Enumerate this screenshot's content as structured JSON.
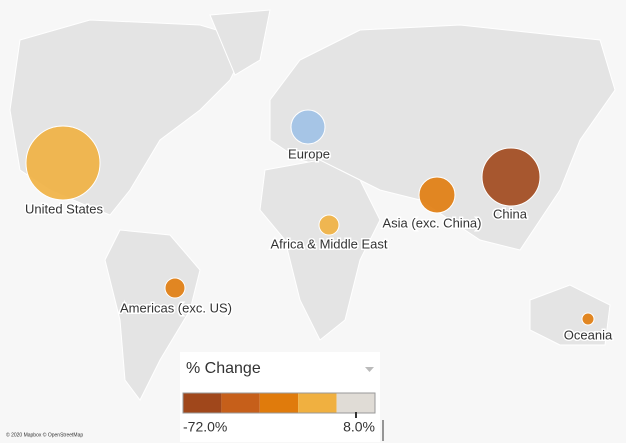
{
  "map": {
    "regions": [
      {
        "name": "United States",
        "change": -20,
        "color": "#f0b040"
      },
      {
        "name": "Europe",
        "change": 12,
        "color": "#9ec1e6"
      },
      {
        "name": "Africa & Middle East",
        "change": -20,
        "color": "#f0b040"
      },
      {
        "name": "Asia (exc. China)",
        "change": -35,
        "color": "#e07b0c"
      },
      {
        "name": "China",
        "change": -68,
        "color": "#a0471b"
      },
      {
        "name": "Americas (exc. US)",
        "change": -35,
        "color": "#e07b0c"
      },
      {
        "name": "Oceania",
        "change": -35,
        "color": "#e07b0c"
      }
    ],
    "legend": {
      "title": "% Change",
      "min": {
        "value": -72,
        "label": "-72.0%"
      },
      "max": {
        "value": 8,
        "label": "8.0%"
      },
      "colors": [
        "#a0471b",
        "#c65f1a",
        "#e07b0c",
        "#f0b040",
        "#e0dcd6"
      ]
    },
    "attribution": "© 2020 Mapbox © OpenStreetMap"
  }
}
